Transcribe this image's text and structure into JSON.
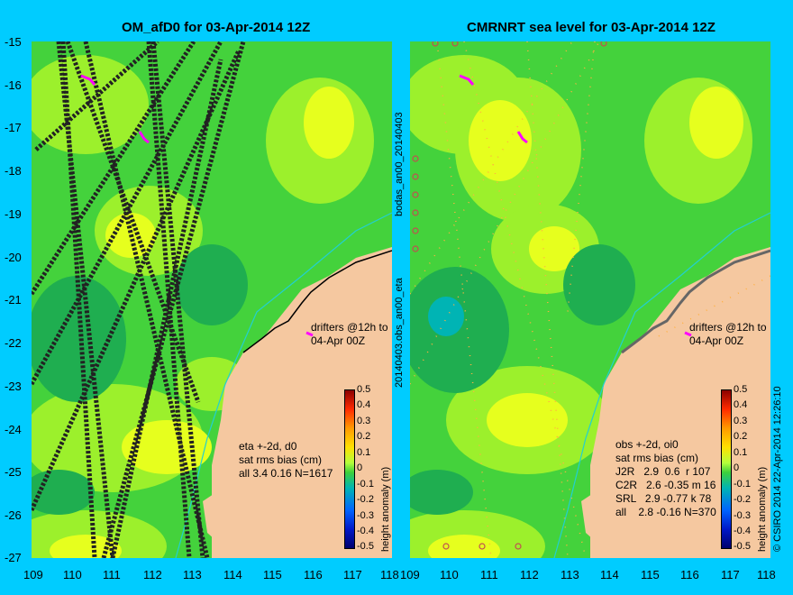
{
  "left_panel": {
    "title": "OM_afD0 for 03-Apr-2014 12Z",
    "drifters_label": "drifters @12h to\n04-Apr 00Z",
    "stats": "eta +-2d, d0\nsat rms bias (cm)\nall 3.4 0.16 N=1617"
  },
  "right_panel": {
    "title": "CMRNRT sea level  for 03-Apr-2014 12Z",
    "drifters_label": "drifters @12h to\n04-Apr 00Z",
    "stats": "obs +-2d, oi0\nsat rms bias (cm)\nJ2R   2.9  0.6  r 107\nC2R   2.6 -0.35 m 16\nSRL   2.9 -0.77 k 78\nall    2.8 -0.16 N=370",
    "side_label_top": "bodas_an00_20140403",
    "side_label_bottom": "20140403.obs_an00_eta"
  },
  "axes": {
    "lat_labels": [
      "-15",
      "-16",
      "-17",
      "-18",
      "-19",
      "-20",
      "-21",
      "-22",
      "-23",
      "-24",
      "-25",
      "-26",
      "-27"
    ],
    "left_lon_labels": [
      "109",
      "110",
      "111",
      "112",
      "113",
      "114",
      "115",
      "116",
      "117",
      "118"
    ],
    "right_lon_labels": [
      "109",
      "110",
      "111",
      "112",
      "113",
      "114",
      "115",
      "116",
      "117",
      "118"
    ]
  },
  "colorbar": {
    "label": "height anomaly (m)",
    "ticks": [
      "0.5",
      "0.4",
      "0.3",
      "0.2",
      "0.1",
      "0",
      "-0.1",
      "-0.2",
      "-0.3",
      "-0.4",
      "-0.5"
    ],
    "colors": [
      "#8b0000",
      "#ff2a00",
      "#ff9a00",
      "#ffe000",
      "#b4ff3c",
      "#3cd03c",
      "#00b4b4",
      "#0064ff",
      "#0018c8",
      "#00006e"
    ]
  },
  "footer": {
    "credit": "© CSIRO 2014   22-Apr-2014 12:26:10"
  },
  "colors": {
    "land": "#f5c8a0",
    "sea_green": "#44d23c",
    "sea_light": "#9cf02c",
    "sea_yellow": "#e6ff1e",
    "sea_dark": "#1fae50",
    "background": "#00ccff"
  }
}
